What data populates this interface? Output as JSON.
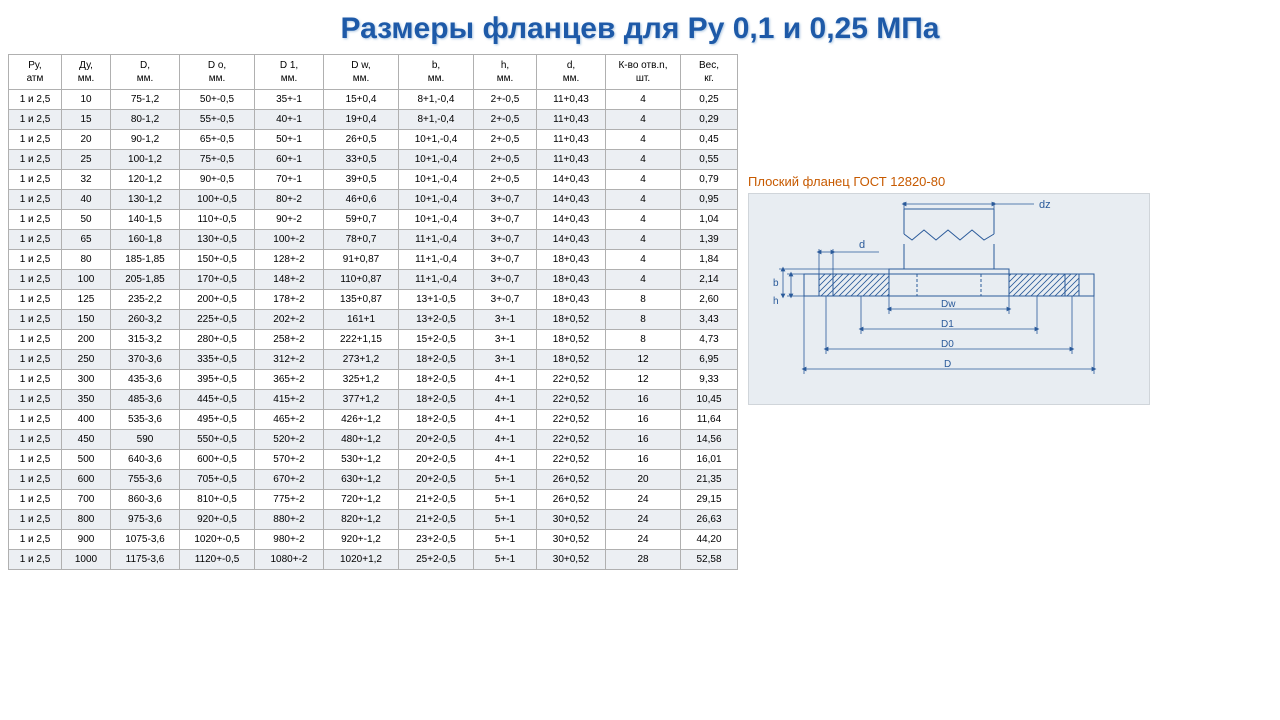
{
  "title": "Размеры фланцев для Ру 0,1 и 0,25 МПа",
  "diagram": {
    "caption": "Плоский фланец ГОСТ 12820-80",
    "labels": {
      "dz": "dz",
      "d": "d",
      "b": "b",
      "h": "h",
      "Dw": "Dw",
      "D1": "D1",
      "D0": "D0",
      "D": "D"
    },
    "colors": {
      "bg": "#e8edf2",
      "line": "#2a5a9a",
      "hatch": "#2a5a9a",
      "text": "#2a5a9a"
    }
  },
  "table": {
    "columns": [
      {
        "h1": "Ру,",
        "h2": "атм"
      },
      {
        "h1": "Ду,",
        "h2": "мм."
      },
      {
        "h1": "D,",
        "h2": "мм."
      },
      {
        "h1": "D о,",
        "h2": "мм."
      },
      {
        "h1": "D 1,",
        "h2": "мм."
      },
      {
        "h1": "D w,",
        "h2": "мм."
      },
      {
        "h1": "b,",
        "h2": "мм."
      },
      {
        "h1": "h,",
        "h2": "мм."
      },
      {
        "h1": "d,",
        "h2": "мм."
      },
      {
        "h1": "К-во отв.n,",
        "h2": "шт."
      },
      {
        "h1": "Вес,",
        "h2": "кг."
      }
    ],
    "rows": [
      [
        "1 и 2,5",
        "10",
        "75-1,2",
        "50+-0,5",
        "35+-1",
        "15+0,4",
        "8+1,-0,4",
        "2+-0,5",
        "11+0,43",
        "4",
        "0,25"
      ],
      [
        "1 и 2,5",
        "15",
        "80-1,2",
        "55+-0,5",
        "40+-1",
        "19+0,4",
        "8+1,-0,4",
        "2+-0,5",
        "11+0,43",
        "4",
        "0,29"
      ],
      [
        "1 и 2,5",
        "20",
        "90-1,2",
        "65+-0,5",
        "50+-1",
        "26+0,5",
        "10+1,-0,4",
        "2+-0,5",
        "11+0,43",
        "4",
        "0,45"
      ],
      [
        "1 и 2,5",
        "25",
        "100-1,2",
        "75+-0,5",
        "60+-1",
        "33+0,5",
        "10+1,-0,4",
        "2+-0,5",
        "11+0,43",
        "4",
        "0,55"
      ],
      [
        "1 и 2,5",
        "32",
        "120-1,2",
        "90+-0,5",
        "70+-1",
        "39+0,5",
        "10+1,-0,4",
        "2+-0,5",
        "14+0,43",
        "4",
        "0,79"
      ],
      [
        "1 и 2,5",
        "40",
        "130-1,2",
        "100+-0,5",
        "80+-2",
        "46+0,6",
        "10+1,-0,4",
        "3+-0,7",
        "14+0,43",
        "4",
        "0,95"
      ],
      [
        "1 и 2,5",
        "50",
        "140-1,5",
        "110+-0,5",
        "90+-2",
        "59+0,7",
        "10+1,-0,4",
        "3+-0,7",
        "14+0,43",
        "4",
        "1,04"
      ],
      [
        "1 и 2,5",
        "65",
        "160-1,8",
        "130+-0,5",
        "100+-2",
        "78+0,7",
        "11+1,-0,4",
        "3+-0,7",
        "14+0,43",
        "4",
        "1,39"
      ],
      [
        "1 и 2,5",
        "80",
        "185-1,85",
        "150+-0,5",
        "128+-2",
        "91+0,87",
        "11+1,-0,4",
        "3+-0,7",
        "18+0,43",
        "4",
        "1,84"
      ],
      [
        "1 и 2,5",
        "100",
        "205-1,85",
        "170+-0,5",
        "148+-2",
        "110+0,87",
        "11+1,-0,4",
        "3+-0,7",
        "18+0,43",
        "4",
        "2,14"
      ],
      [
        "1 и 2,5",
        "125",
        "235-2,2",
        "200+-0,5",
        "178+-2",
        "135+0,87",
        "13+1-0,5",
        "3+-0,7",
        "18+0,43",
        "8",
        "2,60"
      ],
      [
        "1 и 2,5",
        "150",
        "260-3,2",
        "225+-0,5",
        "202+-2",
        "161+1",
        "13+2-0,5",
        "3+-1",
        "18+0,52",
        "8",
        "3,43"
      ],
      [
        "1 и 2,5",
        "200",
        "315-3,2",
        "280+-0,5",
        "258+-2",
        "222+1,15",
        "15+2-0,5",
        "3+-1",
        "18+0,52",
        "8",
        "4,73"
      ],
      [
        "1 и 2,5",
        "250",
        "370-3,6",
        "335+-0,5",
        "312+-2",
        "273+1,2",
        "18+2-0,5",
        "3+-1",
        "18+0,52",
        "12",
        "6,95"
      ],
      [
        "1 и 2,5",
        "300",
        "435-3,6",
        "395+-0,5",
        "365+-2",
        "325+1,2",
        "18+2-0,5",
        "4+-1",
        "22+0,52",
        "12",
        "9,33"
      ],
      [
        "1 и 2,5",
        "350",
        "485-3,6",
        "445+-0,5",
        "415+-2",
        "377+1,2",
        "18+2-0,5",
        "4+-1",
        "22+0,52",
        "16",
        "10,45"
      ],
      [
        "1 и 2,5",
        "400",
        "535-3,6",
        "495+-0,5",
        "465+-2",
        "426+-1,2",
        "18+2-0,5",
        "4+-1",
        "22+0,52",
        "16",
        "11,64"
      ],
      [
        "1 и 2,5",
        "450",
        "590",
        "550+-0,5",
        "520+-2",
        "480+-1,2",
        "20+2-0,5",
        "4+-1",
        "22+0,52",
        "16",
        "14,56"
      ],
      [
        "1 и 2,5",
        "500",
        "640-3,6",
        "600+-0,5",
        "570+-2",
        "530+-1,2",
        "20+2-0,5",
        "4+-1",
        "22+0,52",
        "16",
        "16,01"
      ],
      [
        "1 и 2,5",
        "600",
        "755-3,6",
        "705+-0,5",
        "670+-2",
        "630+-1,2",
        "20+2-0,5",
        "5+-1",
        "26+0,52",
        "20",
        "21,35"
      ],
      [
        "1 и 2,5",
        "700",
        "860-3,6",
        "810+-0,5",
        "775+-2",
        "720+-1,2",
        "21+2-0,5",
        "5+-1",
        "26+0,52",
        "24",
        "29,15"
      ],
      [
        "1 и 2,5",
        "800",
        "975-3,6",
        "920+-0,5",
        "880+-2",
        "820+-1,2",
        "21+2-0,5",
        "5+-1",
        "30+0,52",
        "24",
        "26,63"
      ],
      [
        "1 и 2,5",
        "900",
        "1075-3,6",
        "1020+-0,5",
        "980+-2",
        "920+-1,2",
        "23+2-0,5",
        "5+-1",
        "30+0,52",
        "24",
        "44,20"
      ],
      [
        "1 и 2,5",
        "1000",
        "1175-3,6",
        "1120+-0,5",
        "1080+-2",
        "1020+1,2",
        "25+2-0,5",
        "5+-1",
        "30+0,52",
        "28",
        "52,58"
      ]
    ]
  }
}
